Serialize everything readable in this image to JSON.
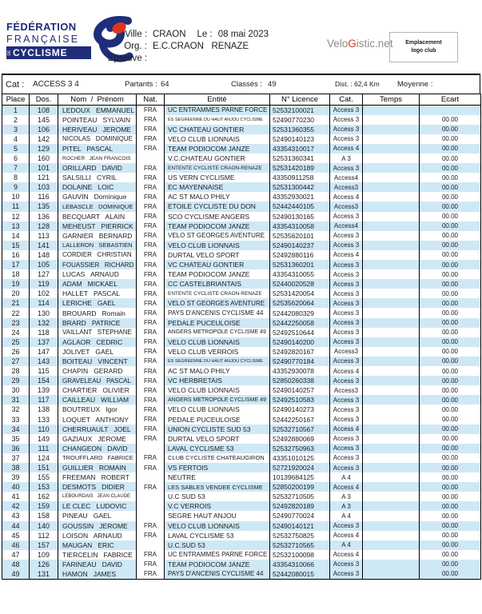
{
  "header": {
    "logo": {
      "line1": "FÉDÉRATION",
      "line2": "FRANÇAISE",
      "de": "DE",
      "line3": "CYCLISME"
    },
    "ville_label": "Ville :",
    "ville": "CRAON",
    "le_label": "Le :",
    "date": "08 mai 2023",
    "org_label": "Org. :",
    "org": "E.C.CRAON   RENAZE",
    "epreuve_label": "Epreuve :",
    "epreuve": "",
    "brand": {
      "part1": "Velo",
      "part2": "G",
      "part3": "istic.net"
    },
    "logo_club_line1": "Emplacement",
    "logo_club_line2": "logo club"
  },
  "colors": {
    "navy": "#1f2d7b",
    "red": "#e2341c",
    "row_shade": "#cfe8f6",
    "brand_gray": "#8c8c8c",
    "brand_red": "#d8372a"
  },
  "summary": {
    "cat_label": "Cat :",
    "cat": "ACCESS 3 4",
    "partants_label": "Partants :",
    "partants": "64",
    "classes_label": "Classés :",
    "classes": "49",
    "dist_label": "Dist. : 62,4 Km",
    "moyenne_label": "Moyenne :",
    "moyenne": ""
  },
  "table": {
    "columns": [
      "Place",
      "Dos.",
      "Nom  /  Prénom",
      "Nat.",
      "Entité",
      "N° Licence",
      "Cat.",
      "Temps",
      "Ecart"
    ],
    "rows": [
      {
        "place": "1",
        "dos": "108",
        "name": "LEDOUX   EMMANUEL",
        "nat": "FRA",
        "entity": "UC ENTRAMMES PARNE FORCE",
        "licence": "52532100021",
        "cat": "Access 3",
        "temps": "",
        "ecart": "",
        "shaded": true
      },
      {
        "place": "2",
        "dos": "145",
        "name": "POINTEAU   SYLVAIN",
        "nat": "FRA",
        "entity": "ES SEGREENNE DU HAUT ANJOU CYCLISME",
        "licence": "52490770230",
        "cat": "Access 3",
        "temps": "",
        "ecart": "00.00",
        "shaded": false
      },
      {
        "place": "3",
        "dos": "106",
        "name": "HERIVEAU   JEROME",
        "nat": "FRA",
        "entity": "VC CHATEAU GONTIER",
        "licence": "52531360355",
        "cat": "Access 3",
        "temps": "",
        "ecart": "00.00",
        "shaded": true
      },
      {
        "place": "4",
        "dos": "142",
        "name": "NICOLAS   DOMINIQUE",
        "nat": "FRA",
        "entity": "VELO CLUB LIONNAIS",
        "licence": "52490140123",
        "cat": "Access 3",
        "temps": "",
        "ecart": "00.00",
        "shaded": false
      },
      {
        "place": "5",
        "dos": "129",
        "name": "PITEL   PASCAL",
        "nat": "FRA",
        "entity": "TEAM PODIOCOM JANZE",
        "licence": "43354310017",
        "cat": "Access 4",
        "temps": "",
        "ecart": "00.00",
        "shaded": true
      },
      {
        "place": "6",
        "dos": "160",
        "name": "ROCHER   JEAN FRANCOIS",
        "nat": "",
        "entity": "V.C.CHATEAU GONTIER",
        "licence": "52531360341",
        "cat": "A 3",
        "temps": "",
        "ecart": "00.00",
        "shaded": false
      },
      {
        "place": "7",
        "dos": "101",
        "name": "ORILLARD   DAVID",
        "nat": "FRA",
        "entity": "ENTENTE CYCLISTE CRAON-RENAZE",
        "licence": "52531420189",
        "cat": "Access 3",
        "temps": "",
        "ecart": "00.00",
        "shaded": true
      },
      {
        "place": "8",
        "dos": "121",
        "name": "SALSILLI   CYRIL",
        "nat": "FRA",
        "entity": "US VERN CYCLISME",
        "licence": "43350911258",
        "cat": "Access4",
        "temps": "",
        "ecart": "00.00",
        "shaded": false
      },
      {
        "place": "9",
        "dos": "103",
        "name": "DOLAINE   LOIC",
        "nat": "FRA",
        "entity": "EC MAYENNAISE",
        "licence": "52531300442",
        "cat": "Access3",
        "temps": "",
        "ecart": "00.00",
        "shaded": true
      },
      {
        "place": "10",
        "dos": "116",
        "name": "GAUVIN   Dominique",
        "nat": "FRA",
        "entity": "AC ST MALO PHILY",
        "licence": "43352930021",
        "cat": "Access 4",
        "temps": "",
        "ecart": "00.00",
        "shaded": false
      },
      {
        "place": "11",
        "dos": "135",
        "name": "LEBASCLE   DOMINIQUE",
        "nat": "FRA",
        "entity": "ETOILE CYCLISTE DU DON",
        "licence": "52442440105",
        "cat": "Access3",
        "temps": "",
        "ecart": "00.00",
        "shaded": true
      },
      {
        "place": "12",
        "dos": "136",
        "name": "BECQUART   ALAIN",
        "nat": "FRA",
        "entity": "SCO CYCLISME ANGERS",
        "licence": "52490130165",
        "cat": "Access 3",
        "temps": "",
        "ecart": "00.00",
        "shaded": false
      },
      {
        "place": "13",
        "dos": "128",
        "name": "MEHEUST   PIERRICK",
        "nat": "FRA",
        "entity": "TEAM PODIOCOM JANZE",
        "licence": "43354310058",
        "cat": "Access4",
        "temps": "",
        "ecart": "00.00",
        "shaded": true
      },
      {
        "place": "14",
        "dos": "113",
        "name": "GARNIER   BERNARD",
        "nat": "FRA",
        "entity": "VELO ST GEORGES AVENTURE",
        "licence": "52535620101",
        "cat": "Access 3",
        "temps": "",
        "ecart": "00.00",
        "shaded": false
      },
      {
        "place": "15",
        "dos": "141",
        "name": "LALLERON   SEBASTIEN",
        "nat": "FRA",
        "entity": "VELO CLUB LIONNAIS",
        "licence": "52490140237",
        "cat": "Access 3",
        "temps": "",
        "ecart": "00.00",
        "shaded": true
      },
      {
        "place": "16",
        "dos": "148",
        "name": "CORDIER   CHRISTIAN",
        "nat": "FRA",
        "entity": "DURTAL VELO SPORT",
        "licence": "52492880116",
        "cat": "Access 4",
        "temps": "",
        "ecart": "00.00",
        "shaded": false
      },
      {
        "place": "17",
        "dos": "105",
        "name": "FOUASSIER   RICHARD",
        "nat": "FRA",
        "entity": "VC CHATEAU GONTIER",
        "licence": "52531360201",
        "cat": "Access 3",
        "temps": "",
        "ecart": "00.00",
        "shaded": true
      },
      {
        "place": "18",
        "dos": "127",
        "name": "LUCAS   ARNAUD",
        "nat": "FRA",
        "entity": "TEAM PODIOCOM JANZE",
        "licence": "43354310055",
        "cat": "Access 3",
        "temps": "",
        "ecart": "00.00",
        "shaded": false
      },
      {
        "place": "19",
        "dos": "119",
        "name": "ADAM   MICKAEL",
        "nat": "FRA",
        "entity": "CC CASTELBRIANTAIS",
        "licence": "52440020528",
        "cat": "Access 3",
        "temps": "",
        "ecart": "00.00",
        "shaded": true
      },
      {
        "place": "20",
        "dos": "102",
        "name": "HALLET   PASCAL",
        "nat": "FRA",
        "entity": "ENTENTE CYCLISTE CRAON-RENAZE",
        "licence": "52531420054",
        "cat": "Access 3",
        "temps": "",
        "ecart": "00.00",
        "shaded": false
      },
      {
        "place": "21",
        "dos": "114",
        "name": "LERICHE   GAEL",
        "nat": "FRA",
        "entity": "VELO ST GEORGES AVENTURE",
        "licence": "52535620064",
        "cat": "Access 3",
        "temps": "",
        "ecart": "00.00",
        "shaded": true
      },
      {
        "place": "22",
        "dos": "130",
        "name": "BROUARD   Romain",
        "nat": "FRA",
        "entity": "PAYS D'ANCENIS CYCLISME 44",
        "licence": "52442080329",
        "cat": "Access 3",
        "temps": "",
        "ecart": "00.00",
        "shaded": false
      },
      {
        "place": "23",
        "dos": "132",
        "name": "BRARD   PATRICE",
        "nat": "FRA",
        "entity": "PEDALE PUCEULOISE",
        "licence": "52442250058",
        "cat": "Access 3",
        "temps": "",
        "ecart": "00.00",
        "shaded": true
      },
      {
        "place": "24",
        "dos": "118",
        "name": "VAILLANT   STEPHANE",
        "nat": "FRA",
        "entity": "ANGERS METROPOLE CYCLISME 49",
        "licence": "52492510644",
        "cat": "Access 3",
        "temps": "",
        "ecart": "00.00",
        "shaded": false
      },
      {
        "place": "25",
        "dos": "137",
        "name": "AGLAOR   CEDRIC",
        "nat": "FRA",
        "entity": "VELO CLUB LIONNAIS",
        "licence": "52490140200",
        "cat": "Access 3",
        "temps": "",
        "ecart": "00.00",
        "shaded": true
      },
      {
        "place": "26",
        "dos": "147",
        "name": "JOLIVET   GAEL",
        "nat": "FRA",
        "entity": "VELO CLUB VERROIS",
        "licence": "52492820167",
        "cat": "Access3",
        "temps": "",
        "ecart": "00.00",
        "shaded": false
      },
      {
        "place": "27",
        "dos": "143",
        "name": "BOITEAU   VINCENT",
        "nat": "FRA",
        "entity": "ES SEGREENNE DU HAUT ANJOU CYCLISME",
        "licence": "52490770184",
        "cat": "Access 3",
        "temps": "",
        "ecart": "00.00",
        "shaded": true
      },
      {
        "place": "28",
        "dos": "115",
        "name": "CHAPIN   GERARD",
        "nat": "FRA",
        "entity": "AC ST MALO PHILY",
        "licence": "43352930078",
        "cat": "Access 4",
        "temps": "",
        "ecart": "00.00",
        "shaded": false
      },
      {
        "place": "29",
        "dos": "154",
        "name": "GRAVELEAU   PASCAL",
        "nat": "FRA",
        "entity": "VC HERBRETAIS",
        "licence": "52850260338",
        "cat": "Access 3",
        "temps": "",
        "ecart": "00.00",
        "shaded": true
      },
      {
        "place": "30",
        "dos": "139",
        "name": "CHARTIER   OLIVIER",
        "nat": "FRA",
        "entity": "VELO CLUB LIONNAIS",
        "licence": "52490140257",
        "cat": "Access3",
        "temps": "",
        "ecart": "00.00",
        "shaded": false
      },
      {
        "place": "31",
        "dos": "117",
        "name": "CAILLEAU   WILLIAM",
        "nat": "FRA",
        "entity": "ANGERS METROPOLE CYCLISME 49",
        "licence": "52492510583",
        "cat": "Access 3",
        "temps": "",
        "ecart": "00.00",
        "shaded": true
      },
      {
        "place": "32",
        "dos": "138",
        "name": "BOUTREUX   Igor",
        "nat": "FRA",
        "entity": "VELO CLUB LIONNAIS",
        "licence": "52490140273",
        "cat": "Access 3",
        "temps": "",
        "ecart": "00.00",
        "shaded": false
      },
      {
        "place": "33",
        "dos": "133",
        "name": "LOQUET   ANTHONY",
        "nat": "FRA",
        "entity": "PEDALE PUCEULOISE",
        "licence": "52442250167",
        "cat": "Access 3",
        "temps": "",
        "ecart": "00.00",
        "shaded": false
      },
      {
        "place": "34",
        "dos": "110",
        "name": "CHERRUAULT   JOEL",
        "nat": "FRA",
        "entity": "UNION CYCLISTE SUD 53",
        "licence": "52532710567",
        "cat": "Access 4",
        "temps": "",
        "ecart": "00.00",
        "shaded": true
      },
      {
        "place": "35",
        "dos": "149",
        "name": "GAZIAUX   JEROME",
        "nat": "FRA",
        "entity": "DURTAL VELO SPORT",
        "licence": "52492880069",
        "cat": "Access 3",
        "temps": "",
        "ecart": "00.00",
        "shaded": false
      },
      {
        "place": "36",
        "dos": "111",
        "name": "CHANGEON   DAVID",
        "nat": "",
        "entity": "LAVAL CYCLISME 53",
        "licence": "52532750963",
        "cat": "Access 3",
        "temps": "",
        "ecart": "00.00",
        "shaded": true
      },
      {
        "place": "37",
        "dos": "124",
        "name": "TROUFFLARD   FABRICE",
        "nat": "FRA",
        "entity": "CLUB CYCLISTE CHATEAUGIRON",
        "licence": "43351010125",
        "cat": "Access 3",
        "temps": "",
        "ecart": "00.00",
        "shaded": false
      },
      {
        "place": "38",
        "dos": "151",
        "name": "GUILLIER   ROMAIN",
        "nat": "FRA",
        "entity": "VS FERTOIS",
        "licence": "52721920024",
        "cat": "Access 3",
        "temps": "",
        "ecart": "00.00",
        "shaded": true
      },
      {
        "place": "39",
        "dos": "155",
        "name": "FREEMAN   ROBERT",
        "nat": "",
        "entity": "NEUTRE",
        "licence": "10139684125",
        "cat": "A 4",
        "temps": "",
        "ecart": "00.00",
        "shaded": false
      },
      {
        "place": "40",
        "dos": "153",
        "name": "DESMOTS   DIDIER",
        "nat": "FRA",
        "entity": "LES SABLES VENDEE CYCLISME",
        "licence": "52850200199",
        "cat": "Access 4",
        "temps": "",
        "ecart": "00.00",
        "shaded": true
      },
      {
        "place": "41",
        "dos": "162",
        "name": "LEBOURDAIS   JEAN CLAUDE",
        "nat": "",
        "entity": "U.C SUD 53",
        "licence": "52532710505",
        "cat": "A 3",
        "temps": "",
        "ecart": "00.00",
        "shaded": false
      },
      {
        "place": "42",
        "dos": "159",
        "name": "LE CLEC   LUDOVIC",
        "nat": "",
        "entity": "V.C VERROIS",
        "licence": "52492820189",
        "cat": "A 3",
        "temps": "",
        "ecart": "00.00",
        "shaded": true
      },
      {
        "place": "43",
        "dos": "158",
        "name": "PINEAU   GAEL",
        "nat": "",
        "entity": "SEGRE HAUT ANJOU",
        "licence": "52490770024",
        "cat": "A 4",
        "temps": "",
        "ecart": "00.00",
        "shaded": false
      },
      {
        "place": "44",
        "dos": "140",
        "name": "GOUSSIN   JEROME",
        "nat": "FRA",
        "entity": "VELO CLUB LIONNAIS",
        "licence": "52490140121",
        "cat": "Access 3",
        "temps": "",
        "ecart": "00.00",
        "shaded": true
      },
      {
        "place": "45",
        "dos": "112",
        "name": "LOISON   ARNAUD",
        "nat": "FRA",
        "entity": "LAVAL CYCLISME 53",
        "licence": "52532750825",
        "cat": "Access 4",
        "temps": "",
        "ecart": "00.00",
        "shaded": false
      },
      {
        "place": "46",
        "dos": "157",
        "name": "MAUGAN   ERIC",
        "nat": "",
        "entity": "U.C.SUD 53",
        "licence": "52532710565",
        "cat": "A 4",
        "temps": "",
        "ecart": "00.00",
        "shaded": true
      },
      {
        "place": "47",
        "dos": "109",
        "name": "TIERCELIN   FABRICE",
        "nat": "FRA",
        "entity": "UC ENTRAMMES PARNE FORCE",
        "licence": "52532100098",
        "cat": "Access 4",
        "temps": "",
        "ecart": "00.00",
        "shaded": false
      },
      {
        "place": "48",
        "dos": "126",
        "name": "FARINEAU   DAVID",
        "nat": "FRA",
        "entity": "TEAM PODIOCOM JANZE",
        "licence": "43354310066",
        "cat": "Access 3",
        "temps": "",
        "ecart": "00.00",
        "shaded": true
      },
      {
        "place": "49",
        "dos": "131",
        "name": "HAMON   JAMES",
        "nat": "FRA",
        "entity": "PAYS D'ANCENIS CYCLISME 44",
        "licence": "52442080015",
        "cat": "Access 3",
        "temps": "",
        "ecart": "00.00",
        "shaded": true
      }
    ]
  }
}
